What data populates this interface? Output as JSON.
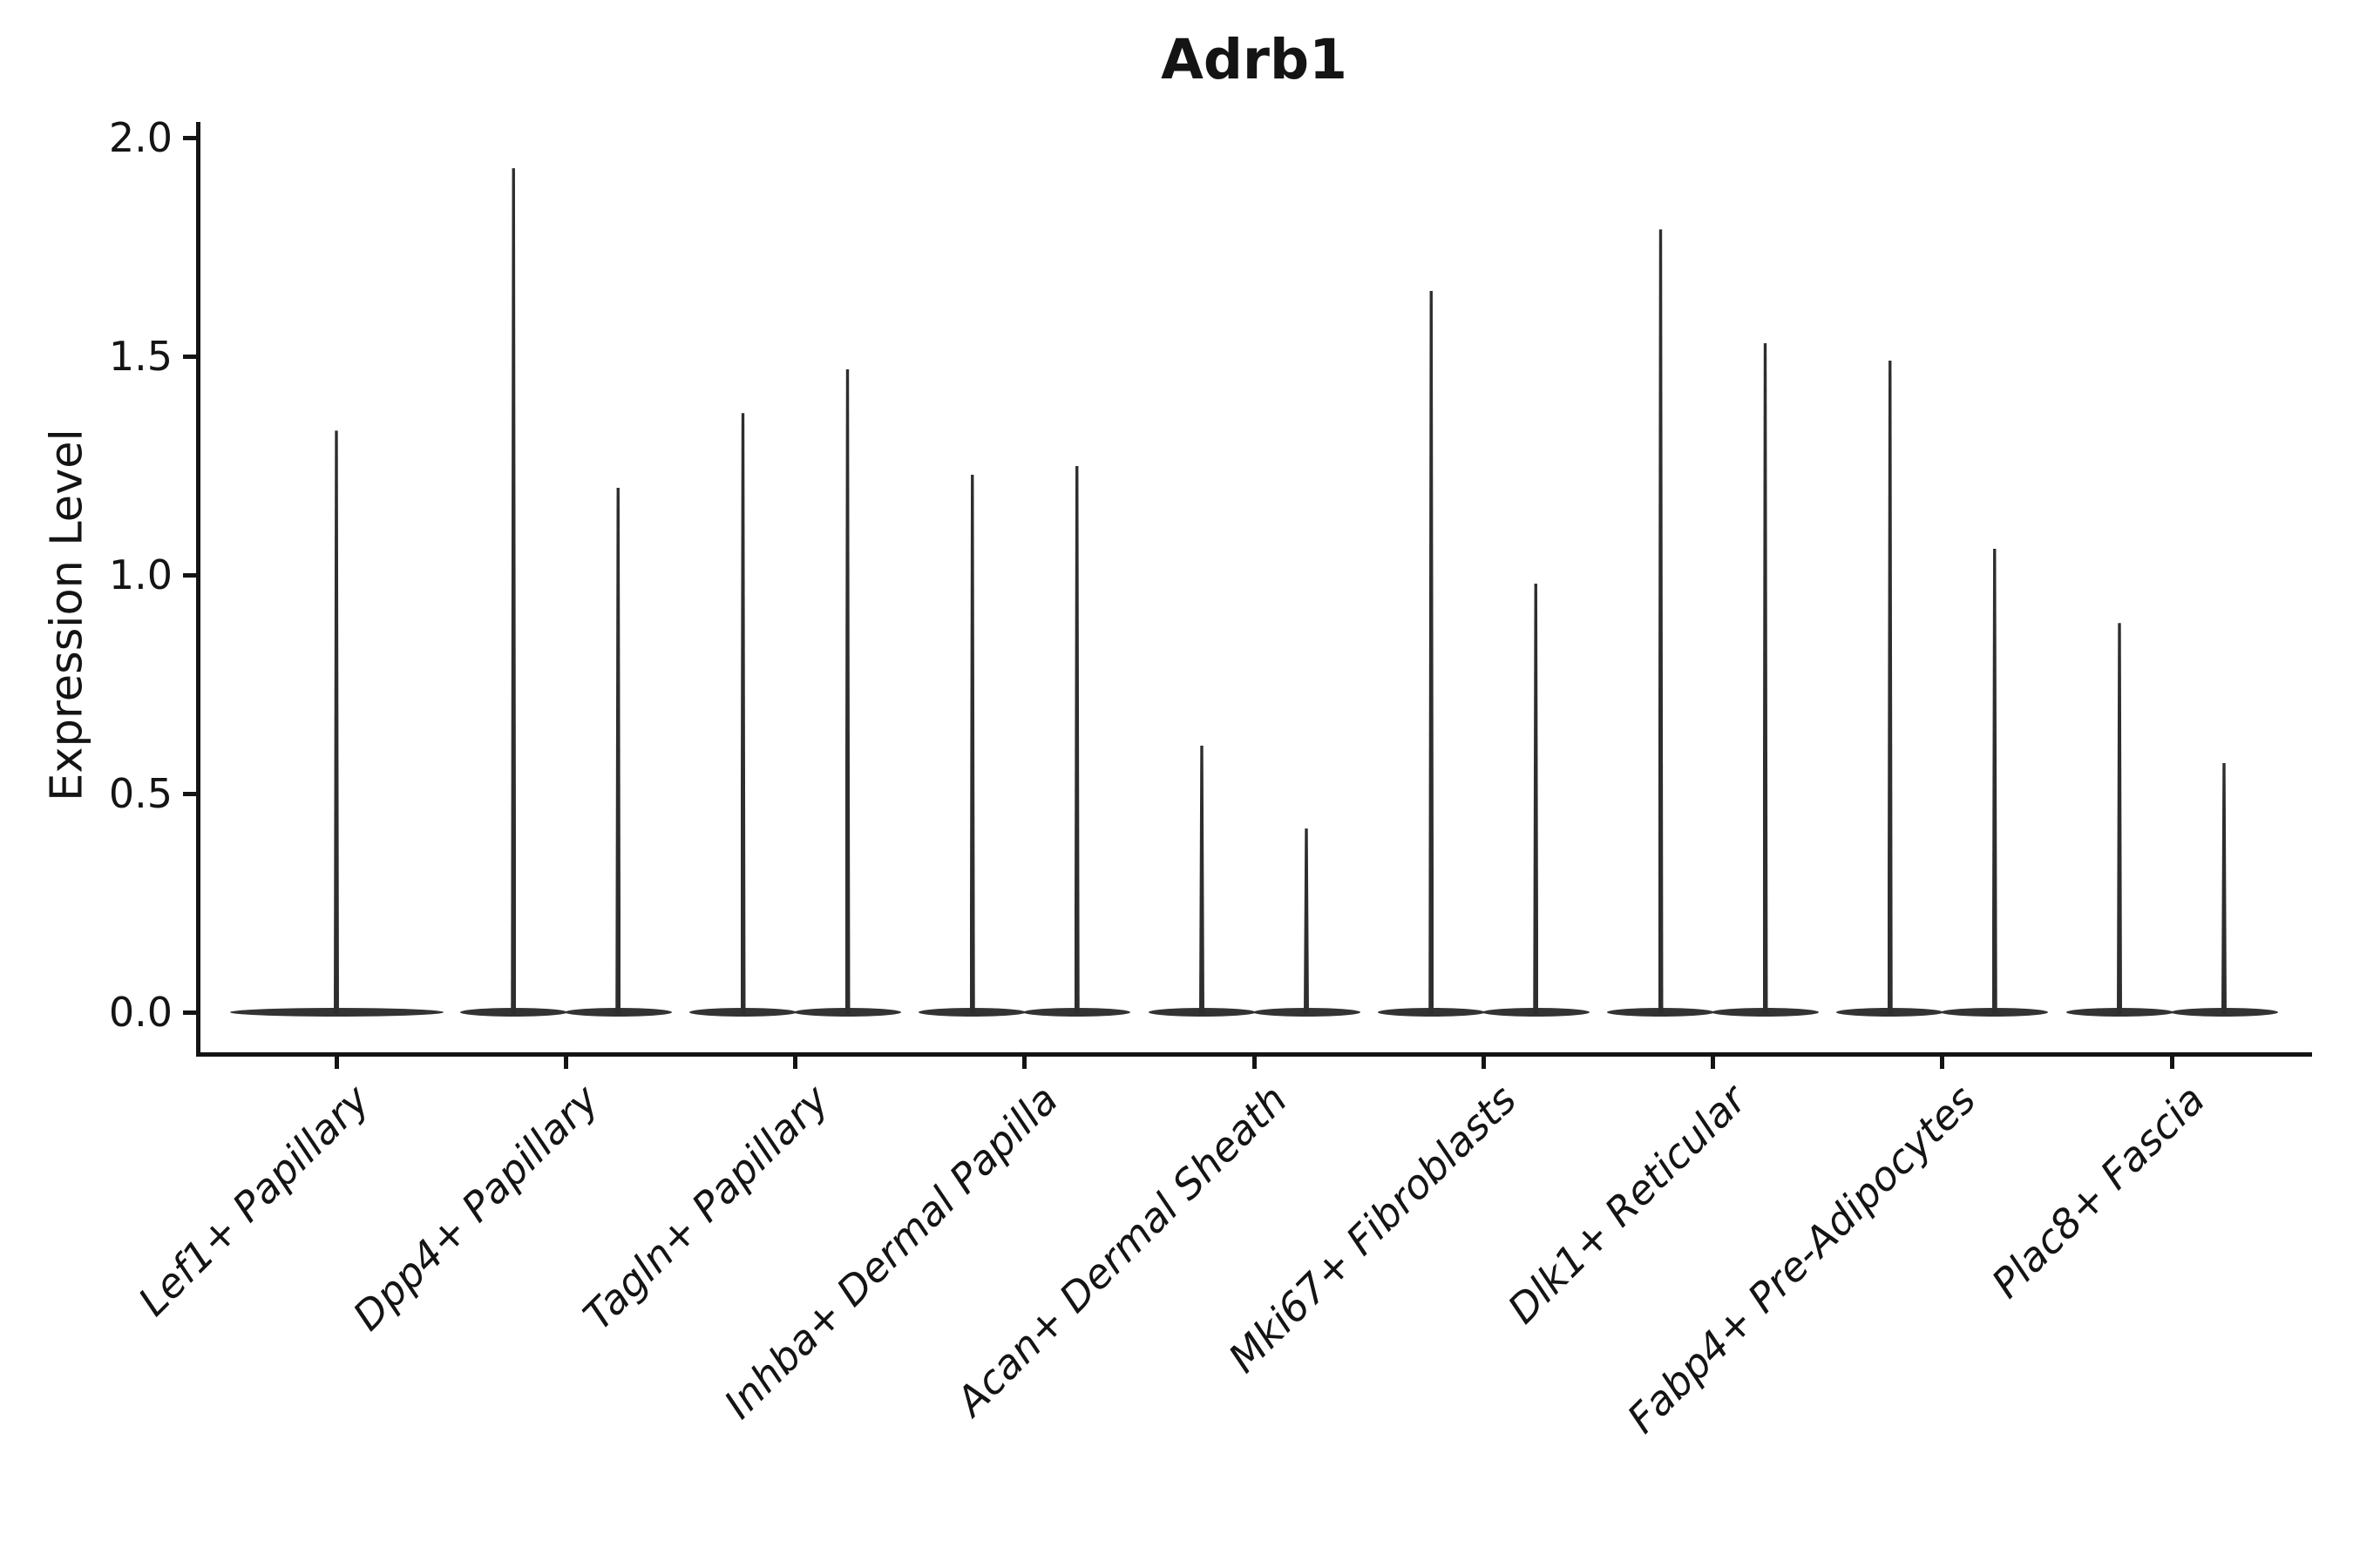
{
  "title": "Adrb1",
  "y_axis": {
    "label": "Expression Level",
    "ticks": [
      {
        "label": "2.0",
        "value": 2.0
      },
      {
        "label": "1.5",
        "value": 1.5
      },
      {
        "label": "1.0",
        "value": 1.0
      },
      {
        "label": "0.5",
        "value": 0.5
      },
      {
        "label": "0.0",
        "value": 0.0
      }
    ]
  },
  "chart_data": {
    "type": "violin",
    "title": "Adrb1",
    "xlabel": "",
    "ylabel": "Expression Level",
    "ylim": [
      0,
      2.0
    ],
    "grid": false,
    "legend": "none",
    "note": "Single-cell gene expression violin plot. Every violin's density mass is concentrated at expression 0 (wide flat base) with a thin spike rising to the maximum expression value of that group. The first category contains one full-width violin; all other categories contain two half-width dodged violins.",
    "categories": [
      "Lef1+ Papillary",
      "Dpp4+ Papillary",
      "Tagln+ Papillary",
      "Inhba+ Dermal Papilla",
      "Acan+ Dermal Sheath",
      "Mki67+ Fibroblasts",
      "Dlk1+ Reticular",
      "Fabp4+ Pre-Adipocytes",
      "Plac8+ Fascia"
    ],
    "violins": [
      {
        "category": "Lef1+ Papillary",
        "group_maxima": [
          1.33
        ]
      },
      {
        "category": "Dpp4+ Papillary",
        "group_maxima": [
          1.93,
          1.2
        ]
      },
      {
        "category": "Tagln+ Papillary",
        "group_maxima": [
          1.37,
          1.47
        ]
      },
      {
        "category": "Inhba+ Dermal Papilla",
        "group_maxima": [
          1.23,
          1.25
        ]
      },
      {
        "category": "Acan+ Dermal Sheath",
        "group_maxima": [
          0.61,
          0.42
        ]
      },
      {
        "category": "Mki67+ Fibroblasts",
        "group_maxima": [
          1.65,
          0.98
        ]
      },
      {
        "category": "Dlk1+ Reticular",
        "group_maxima": [
          1.79,
          1.53
        ]
      },
      {
        "category": "Fabp4+ Pre-Adipocytes",
        "group_maxima": [
          1.49,
          1.06
        ]
      },
      {
        "category": "Plac8+ Fascia",
        "group_maxima": [
          0.89,
          0.57
        ]
      }
    ]
  },
  "colors": {
    "violin_fill": "#333333",
    "axis": "#141414",
    "text": "#141414",
    "background": "#ffffff"
  }
}
